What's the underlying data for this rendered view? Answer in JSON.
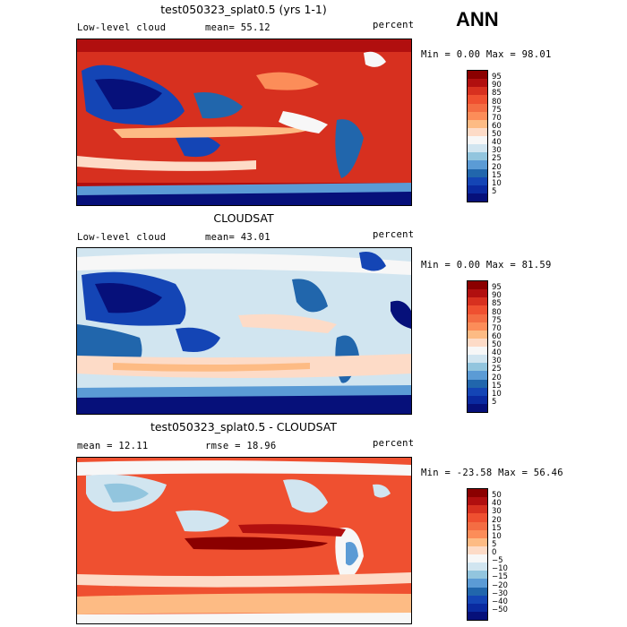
{
  "header": {
    "season": "ANN"
  },
  "scales": {
    "abs": {
      "labels": [
        "95",
        "90",
        "85",
        "80",
        "75",
        "70",
        "60",
        "50",
        "40",
        "30",
        "25",
        "20",
        "15",
        "10",
        "5"
      ],
      "colors": [
        "#8b0000",
        "#b10f0f",
        "#d7301f",
        "#ef5030",
        "#f46d43",
        "#fc8d59",
        "#fdbb84",
        "#fddbc7",
        "#f7f7f7",
        "#d1e5f0",
        "#92c5de",
        "#5b9bd5",
        "#2166ac",
        "#1445b5",
        "#0a2aa0",
        "#06107a"
      ]
    },
    "diff": {
      "labels": [
        "50",
        "40",
        "30",
        "20",
        "15",
        "10",
        "5",
        "0",
        "−5",
        "−10",
        "−15",
        "−20",
        "−30",
        "−40",
        "−50"
      ],
      "colors": [
        "#8b0000",
        "#b10f0f",
        "#d7301f",
        "#ef5030",
        "#f46d43",
        "#fc8d59",
        "#fdbb84",
        "#fddbc7",
        "#f7f7f7",
        "#d1e5f0",
        "#92c5de",
        "#5b9bd5",
        "#2166ac",
        "#1445b5",
        "#0a2aa0",
        "#06107a"
      ]
    }
  },
  "panels": [
    {
      "title": "test050323_splat0.5 (yrs 1-1)",
      "left_label": "Low-level cloud",
      "mid_label": "mean=  55.12",
      "right_label": "percent",
      "stats": "Min =   0.00 Max =  98.01",
      "scale": "abs"
    },
    {
      "title": "CLOUDSAT",
      "left_label": "Low-level cloud",
      "mid_label": "mean=  43.01",
      "right_label": "percent",
      "stats": "Min =   0.00 Max =  81.59",
      "scale": "abs"
    },
    {
      "title": "test050323_splat0.5 - CLOUDSAT",
      "left_label": "mean =  12.11",
      "mid_label": "rmse =  18.96",
      "right_label": "percent",
      "stats": "Min = -23.58 Max =  56.46",
      "scale": "diff"
    }
  ],
  "chart_data": [
    {
      "type": "heatmap",
      "title": "test050323_splat0.5 (yrs 1-1)",
      "field": "Low-level cloud",
      "units": "percent",
      "mean": 55.12,
      "min": 0.0,
      "max": 98.01,
      "colorbar_levels": [
        5,
        10,
        15,
        20,
        25,
        30,
        40,
        50,
        60,
        70,
        75,
        80,
        85,
        90,
        95
      ]
    },
    {
      "type": "heatmap",
      "title": "CLOUDSAT",
      "field": "Low-level cloud",
      "units": "percent",
      "mean": 43.01,
      "min": 0.0,
      "max": 81.59,
      "colorbar_levels": [
        5,
        10,
        15,
        20,
        25,
        30,
        40,
        50,
        60,
        70,
        75,
        80,
        85,
        90,
        95
      ]
    },
    {
      "type": "heatmap",
      "title": "test050323_splat0.5 - CLOUDSAT",
      "units": "percent",
      "mean": 12.11,
      "rmse": 18.96,
      "min": -23.58,
      "max": 56.46,
      "colorbar_levels": [
        -50,
        -40,
        -30,
        -20,
        -15,
        -10,
        -5,
        0,
        5,
        10,
        15,
        20,
        30,
        40,
        50
      ]
    }
  ]
}
